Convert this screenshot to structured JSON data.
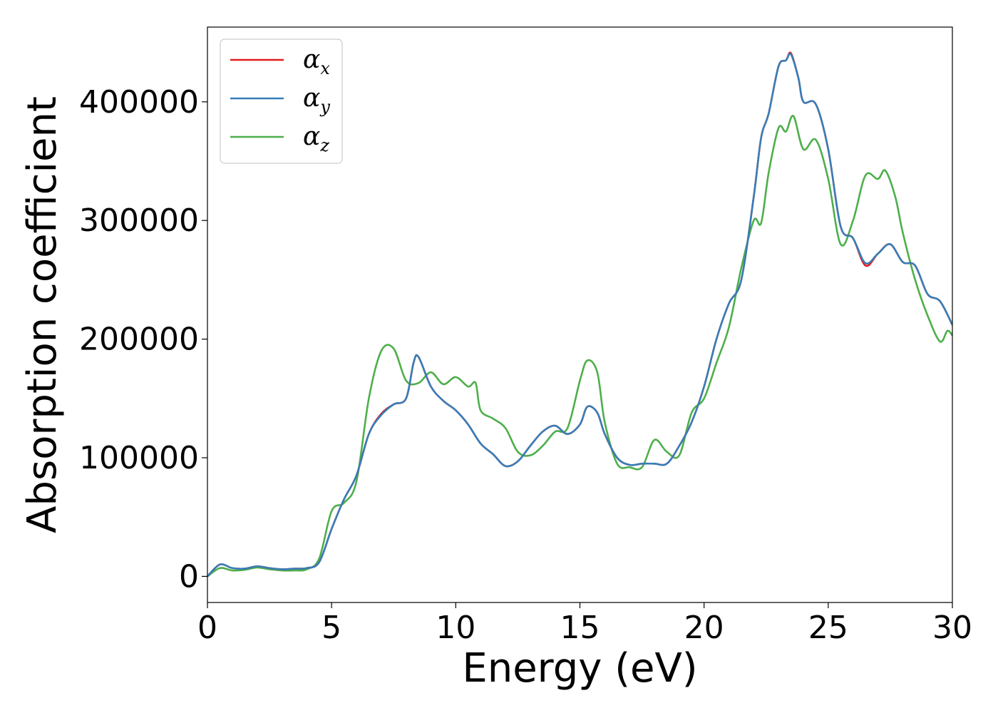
{
  "chart_data": {
    "type": "line",
    "title": "",
    "xlabel": "Energy (eV)",
    "ylabel": "Absorption coefficient",
    "xlim": [
      0,
      30
    ],
    "ylim": [
      -22000,
      463000
    ],
    "xticks": [
      0,
      5,
      10,
      15,
      20,
      25,
      30
    ],
    "xtick_labels": [
      "0",
      "5",
      "10",
      "15",
      "20",
      "25",
      "30"
    ],
    "yticks": [
      0,
      100000,
      200000,
      300000,
      400000
    ],
    "ytick_labels": [
      "0",
      "100000",
      "200000",
      "300000",
      "400000"
    ],
    "grid": false,
    "legend_position": "top-left",
    "series": [
      {
        "name": "αx",
        "symbol": "α",
        "subscript": "x",
        "color": "#e41a1c",
        "points": [
          [
            0,
            0
          ],
          [
            0.5,
            10000
          ],
          [
            1,
            7000
          ],
          [
            1.5,
            6500
          ],
          [
            2,
            8500
          ],
          [
            2.5,
            7000
          ],
          [
            3,
            6000
          ],
          [
            3.5,
            6500
          ],
          [
            4,
            7000
          ],
          [
            4.5,
            12000
          ],
          [
            5,
            40000
          ],
          [
            5.5,
            65000
          ],
          [
            6,
            85000
          ],
          [
            6.5,
            120000
          ],
          [
            7,
            137000
          ],
          [
            7.5,
            145000
          ],
          [
            8,
            150000
          ],
          [
            8.3,
            180000
          ],
          [
            8.5,
            185000
          ],
          [
            9,
            160000
          ],
          [
            9.5,
            148000
          ],
          [
            10,
            140000
          ],
          [
            10.5,
            128000
          ],
          [
            11,
            112000
          ],
          [
            11.5,
            103000
          ],
          [
            12,
            93000
          ],
          [
            12.5,
            97000
          ],
          [
            13,
            110000
          ],
          [
            13.5,
            122000
          ],
          [
            14,
            127000
          ],
          [
            14.5,
            120000
          ],
          [
            15,
            128000
          ],
          [
            15.3,
            143000
          ],
          [
            15.7,
            138000
          ],
          [
            16,
            120000
          ],
          [
            16.5,
            100000
          ],
          [
            17,
            94000
          ],
          [
            17.5,
            95000
          ],
          [
            18,
            95000
          ],
          [
            18.5,
            95000
          ],
          [
            19,
            110000
          ],
          [
            19.5,
            130000
          ],
          [
            20,
            160000
          ],
          [
            20.5,
            200000
          ],
          [
            21,
            230000
          ],
          [
            21.5,
            250000
          ],
          [
            22,
            320000
          ],
          [
            22.3,
            370000
          ],
          [
            22.6,
            390000
          ],
          [
            23,
            430000
          ],
          [
            23.3,
            435000
          ],
          [
            23.5,
            441000
          ],
          [
            23.8,
            420000
          ],
          [
            24,
            400000
          ],
          [
            24.5,
            398000
          ],
          [
            25,
            360000
          ],
          [
            25.5,
            295000
          ],
          [
            26,
            285000
          ],
          [
            26.5,
            262000
          ],
          [
            27,
            272000
          ],
          [
            27.5,
            280000
          ],
          [
            28,
            265000
          ],
          [
            28.5,
            262000
          ],
          [
            29,
            238000
          ],
          [
            29.5,
            232000
          ],
          [
            30,
            212000
          ]
        ]
      },
      {
        "name": "αy",
        "symbol": "α",
        "subscript": "y",
        "color": "#377eb8",
        "points": [
          [
            0,
            0
          ],
          [
            0.5,
            10000
          ],
          [
            1,
            7000
          ],
          [
            1.5,
            6500
          ],
          [
            2,
            8500
          ],
          [
            2.5,
            7000
          ],
          [
            3,
            6000
          ],
          [
            3.5,
            6500
          ],
          [
            4,
            7000
          ],
          [
            4.5,
            12000
          ],
          [
            5,
            40000
          ],
          [
            5.5,
            65000
          ],
          [
            6,
            85000
          ],
          [
            6.5,
            120000
          ],
          [
            7,
            136000
          ],
          [
            7.5,
            145000
          ],
          [
            8,
            150000
          ],
          [
            8.3,
            180000
          ],
          [
            8.5,
            185000
          ],
          [
            9,
            160000
          ],
          [
            9.5,
            148000
          ],
          [
            10,
            140000
          ],
          [
            10.5,
            128000
          ],
          [
            11,
            112000
          ],
          [
            11.5,
            103000
          ],
          [
            12,
            93000
          ],
          [
            12.5,
            97000
          ],
          [
            13,
            110000
          ],
          [
            13.5,
            122000
          ],
          [
            14,
            127000
          ],
          [
            14.5,
            120000
          ],
          [
            15,
            128000
          ],
          [
            15.3,
            143000
          ],
          [
            15.7,
            138000
          ],
          [
            16,
            120000
          ],
          [
            16.5,
            100000
          ],
          [
            17,
            94000
          ],
          [
            17.5,
            95000
          ],
          [
            18,
            95000
          ],
          [
            18.5,
            95000
          ],
          [
            19,
            110000
          ],
          [
            19.5,
            130000
          ],
          [
            20,
            160000
          ],
          [
            20.5,
            200000
          ],
          [
            21,
            230000
          ],
          [
            21.5,
            250000
          ],
          [
            22,
            320000
          ],
          [
            22.3,
            370000
          ],
          [
            22.6,
            390000
          ],
          [
            23,
            430000
          ],
          [
            23.3,
            435000
          ],
          [
            23.5,
            440000
          ],
          [
            23.8,
            420000
          ],
          [
            24,
            400000
          ],
          [
            24.5,
            398000
          ],
          [
            25,
            360000
          ],
          [
            25.5,
            295000
          ],
          [
            26,
            285000
          ],
          [
            26.5,
            264000
          ],
          [
            27,
            272000
          ],
          [
            27.5,
            280000
          ],
          [
            28,
            265000
          ],
          [
            28.5,
            262000
          ],
          [
            29,
            238000
          ],
          [
            29.5,
            232000
          ],
          [
            30,
            212000
          ]
        ]
      },
      {
        "name": "αz",
        "symbol": "α",
        "subscript": "z",
        "color": "#4daf4a",
        "points": [
          [
            0,
            0
          ],
          [
            0.5,
            7000
          ],
          [
            1,
            5000
          ],
          [
            1.5,
            5500
          ],
          [
            2,
            7500
          ],
          [
            2.5,
            6000
          ],
          [
            3,
            5000
          ],
          [
            3.5,
            5000
          ],
          [
            4,
            6000
          ],
          [
            4.5,
            15000
          ],
          [
            5,
            55000
          ],
          [
            5.5,
            62000
          ],
          [
            6,
            80000
          ],
          [
            6.5,
            150000
          ],
          [
            7,
            190000
          ],
          [
            7.5,
            192000
          ],
          [
            8,
            165000
          ],
          [
            8.5,
            163000
          ],
          [
            9,
            172000
          ],
          [
            9.5,
            162000
          ],
          [
            10,
            168000
          ],
          [
            10.5,
            160000
          ],
          [
            10.8,
            163000
          ],
          [
            11,
            140000
          ],
          [
            11.5,
            133000
          ],
          [
            12,
            125000
          ],
          [
            12.5,
            105000
          ],
          [
            13,
            102000
          ],
          [
            13.5,
            110000
          ],
          [
            14,
            122000
          ],
          [
            14.5,
            125000
          ],
          [
            15,
            165000
          ],
          [
            15.3,
            182000
          ],
          [
            15.7,
            172000
          ],
          [
            16,
            130000
          ],
          [
            16.5,
            95000
          ],
          [
            17,
            92000
          ],
          [
            17.5,
            92000
          ],
          [
            18,
            115000
          ],
          [
            18.5,
            105000
          ],
          [
            19,
            102000
          ],
          [
            19.5,
            138000
          ],
          [
            20,
            150000
          ],
          [
            20.5,
            180000
          ],
          [
            21,
            210000
          ],
          [
            21.5,
            260000
          ],
          [
            22,
            300000
          ],
          [
            22.3,
            298000
          ],
          [
            22.6,
            340000
          ],
          [
            23,
            378000
          ],
          [
            23.3,
            375000
          ],
          [
            23.6,
            388000
          ],
          [
            24,
            360000
          ],
          [
            24.5,
            368000
          ],
          [
            25,
            335000
          ],
          [
            25.5,
            280000
          ],
          [
            26,
            300000
          ],
          [
            26.5,
            338000
          ],
          [
            27,
            335000
          ],
          [
            27.3,
            342000
          ],
          [
            27.7,
            320000
          ],
          [
            28,
            290000
          ],
          [
            28.5,
            250000
          ],
          [
            29,
            220000
          ],
          [
            29.5,
            198000
          ],
          [
            29.8,
            207000
          ],
          [
            30,
            203000
          ]
        ]
      }
    ]
  }
}
